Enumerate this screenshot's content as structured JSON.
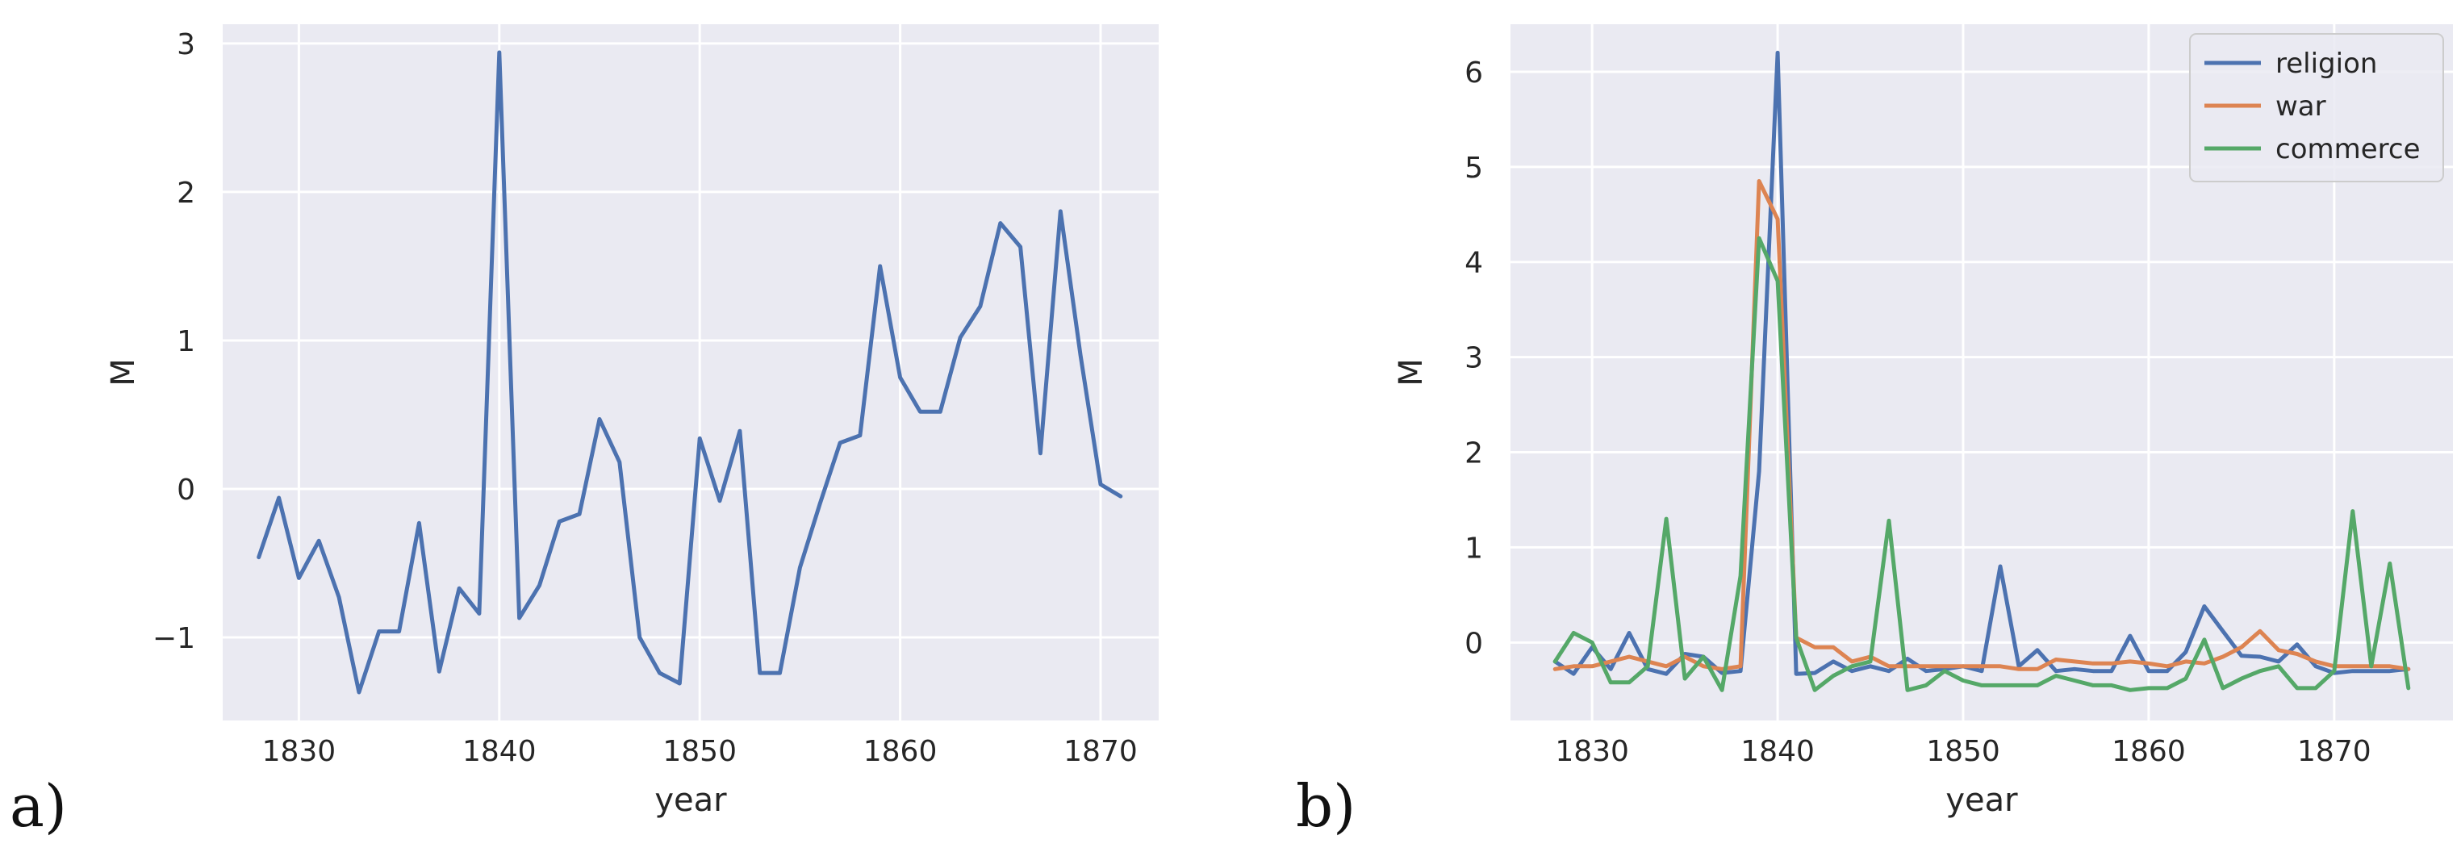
{
  "panel_labels": [
    "a)",
    "b)"
  ],
  "chart_data": [
    {
      "type": "line",
      "xlabel": "year",
      "ylabel": "M",
      "xlim": [
        1826.2,
        1872.9
      ],
      "ylim": [
        -1.56,
        3.13
      ],
      "xticks": [
        1830,
        1840,
        1850,
        1860,
        1870
      ],
      "xtick_labels": [
        "1830",
        "1840",
        "1850",
        "1860",
        "1870"
      ],
      "yticks": [
        -1,
        0,
        1,
        2,
        3
      ],
      "ytick_labels": [
        "−1",
        "0",
        "1",
        "2",
        "3"
      ],
      "grid": true,
      "x": [
        1828,
        1829,
        1830,
        1831,
        1832,
        1833,
        1834,
        1835,
        1836,
        1837,
        1838,
        1839,
        1840,
        1841,
        1842,
        1843,
        1844,
        1845,
        1846,
        1847,
        1848,
        1849,
        1850,
        1851,
        1852,
        1853,
        1854,
        1855,
        1856,
        1857,
        1858,
        1859,
        1860,
        1861,
        1862,
        1863,
        1864,
        1865,
        1866,
        1867,
        1868,
        1869,
        1870,
        1871
      ],
      "series": [
        {
          "color": "#4c72b0",
          "values": [
            -0.46,
            -0.06,
            -0.6,
            -0.35,
            -0.73,
            -1.37,
            -0.96,
            -0.96,
            -0.23,
            -1.23,
            -0.67,
            -0.84,
            2.94,
            -0.87,
            -0.65,
            -0.22,
            -0.17,
            0.47,
            0.18,
            -1.0,
            -1.24,
            -1.31,
            0.34,
            -0.08,
            0.39,
            -1.24,
            -1.24,
            -0.53,
            -0.1,
            0.31,
            0.36,
            1.5,
            0.75,
            0.52,
            0.52,
            1.02,
            1.23,
            1.79,
            1.63,
            0.24,
            1.87,
            0.9,
            0.03,
            -0.05
          ]
        }
      ]
    },
    {
      "type": "line",
      "xlabel": "year",
      "ylabel": "M",
      "xlim": [
        1825.6,
        1876.4
      ],
      "ylim": [
        -0.82,
        6.5
      ],
      "xticks": [
        1830,
        1840,
        1850,
        1860,
        1870
      ],
      "xtick_labels": [
        "1830",
        "1840",
        "1850",
        "1860",
        "1870"
      ],
      "yticks": [
        0,
        1,
        2,
        3,
        4,
        5,
        6
      ],
      "ytick_labels": [
        "0",
        "1",
        "2",
        "3",
        "4",
        "5",
        "6"
      ],
      "grid": true,
      "legend_position": "top-right",
      "x": [
        1828,
        1829,
        1830,
        1831,
        1832,
        1833,
        1834,
        1835,
        1836,
        1837,
        1838,
        1839,
        1840,
        1841,
        1842,
        1843,
        1844,
        1845,
        1846,
        1847,
        1848,
        1849,
        1850,
        1851,
        1852,
        1853,
        1854,
        1855,
        1856,
        1857,
        1858,
        1859,
        1860,
        1861,
        1862,
        1863,
        1864,
        1865,
        1866,
        1867,
        1868,
        1869,
        1870,
        1871,
        1872,
        1873,
        1874
      ],
      "series": [
        {
          "name": "religion",
          "color": "#4c72b0",
          "values": [
            -0.2,
            -0.33,
            -0.05,
            -0.28,
            0.1,
            -0.28,
            -0.33,
            -0.12,
            -0.15,
            -0.32,
            -0.3,
            1.8,
            6.2,
            -0.33,
            -0.32,
            -0.2,
            -0.3,
            -0.25,
            -0.3,
            -0.17,
            -0.3,
            -0.28,
            -0.25,
            -0.3,
            0.8,
            -0.25,
            -0.08,
            -0.3,
            -0.28,
            -0.3,
            -0.3,
            0.07,
            -0.3,
            -0.3,
            -0.1,
            0.38,
            0.12,
            -0.14,
            -0.15,
            -0.2,
            -0.02,
            -0.25,
            -0.32,
            -0.3,
            -0.3,
            -0.3,
            -0.28
          ]
        },
        {
          "name": "war",
          "color": "#dd8452",
          "values": [
            -0.28,
            -0.25,
            -0.25,
            -0.2,
            -0.15,
            -0.2,
            -0.25,
            -0.15,
            -0.25,
            -0.28,
            -0.25,
            4.85,
            4.45,
            0.05,
            -0.05,
            -0.05,
            -0.2,
            -0.15,
            -0.25,
            -0.25,
            -0.25,
            -0.25,
            -0.25,
            -0.25,
            -0.25,
            -0.28,
            -0.28,
            -0.18,
            -0.2,
            -0.22,
            -0.22,
            -0.2,
            -0.22,
            -0.25,
            -0.2,
            -0.22,
            -0.15,
            -0.05,
            0.12,
            -0.08,
            -0.12,
            -0.2,
            -0.25,
            -0.25,
            -0.25,
            -0.25,
            -0.28
          ]
        },
        {
          "name": "commerce",
          "color": "#55a868",
          "values": [
            -0.2,
            0.1,
            0.0,
            -0.42,
            -0.42,
            -0.25,
            1.3,
            -0.38,
            -0.15,
            -0.5,
            0.7,
            4.25,
            3.8,
            0.05,
            -0.5,
            -0.35,
            -0.25,
            -0.2,
            1.28,
            -0.5,
            -0.45,
            -0.3,
            -0.4,
            -0.45,
            -0.45,
            -0.45,
            -0.45,
            -0.35,
            -0.4,
            -0.45,
            -0.45,
            -0.5,
            -0.48,
            -0.48,
            -0.38,
            0.03,
            -0.48,
            -0.38,
            -0.3,
            -0.25,
            -0.48,
            -0.48,
            -0.3,
            1.38,
            -0.25,
            0.83,
            -0.48
          ]
        }
      ]
    }
  ]
}
